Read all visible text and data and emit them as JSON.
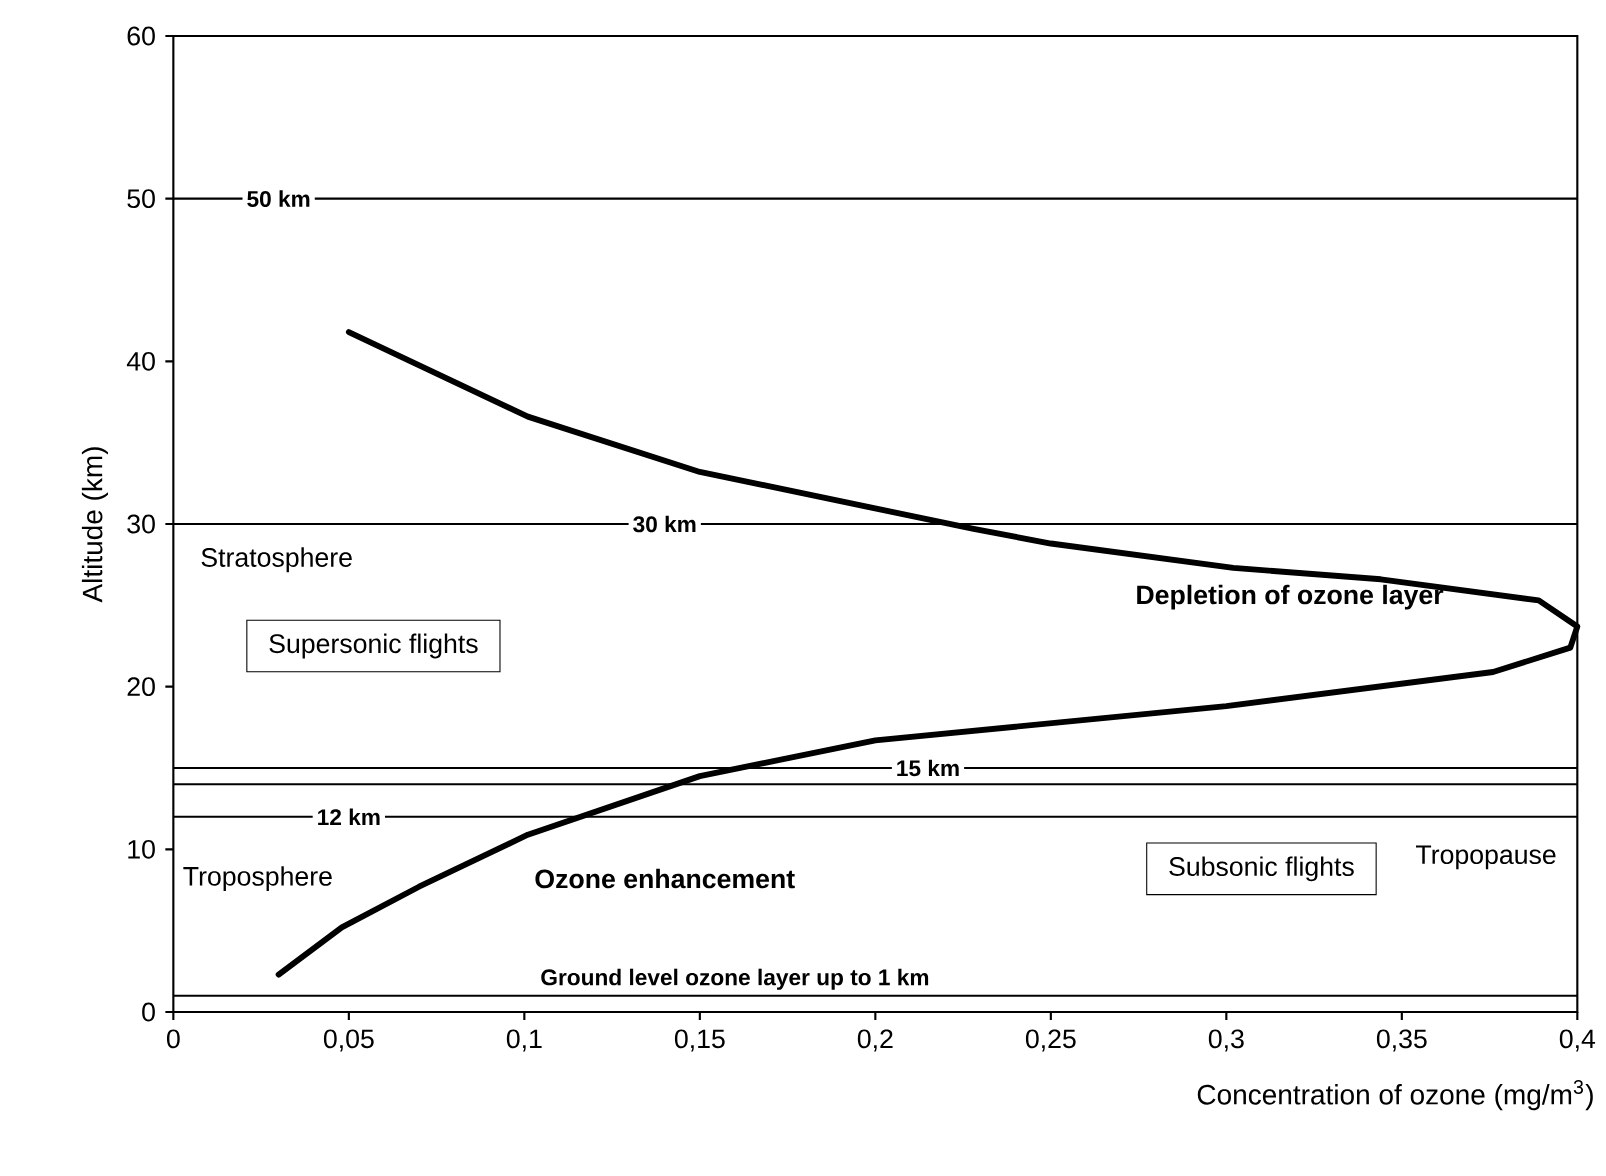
{
  "chart_data": {
    "type": "line",
    "xlabel": "Concentration of ozone (mg/m$^{3}$)",
    "ylabel": "Altitude (km)",
    "xlim": [
      0,
      0.4
    ],
    "ylim": [
      0,
      60
    ],
    "xticks": [
      {
        "value": 0,
        "label": "0"
      },
      {
        "value": 0.05,
        "label": "0,05"
      },
      {
        "value": 0.1,
        "label": "0,1"
      },
      {
        "value": 0.15,
        "label": "0,15"
      },
      {
        "value": 0.2,
        "label": "0,2"
      },
      {
        "value": 0.25,
        "label": "0,25"
      },
      {
        "value": 0.3,
        "label": "0,3"
      },
      {
        "value": 0.35,
        "label": "0,35"
      },
      {
        "value": 0.4,
        "label": "0,4"
      }
    ],
    "yticks": [
      0,
      10,
      20,
      30,
      40,
      50,
      60
    ],
    "series": [
      {
        "color": "#000000",
        "x": [
          0.05,
          0.101,
          0.15,
          0.228,
          0.25,
          0.302,
          0.344,
          0.389,
          0.4,
          0.398,
          0.376,
          0.3,
          0.2,
          0.15,
          0.101,
          0.07,
          0.048,
          0.03
        ],
        "values": [
          41.8,
          36.6,
          33.2,
          29.7,
          28.8,
          27.3,
          26.6,
          25.3,
          23.7,
          22.4,
          20.9,
          18.8,
          16.7,
          14.5,
          10.9,
          7.7,
          5.2,
          2.3
        ]
      }
    ],
    "ref_lines": [
      {
        "axis": "y",
        "value": 50,
        "label": "50 km"
      },
      {
        "axis": "y",
        "value": 30,
        "label": "30 km"
      },
      {
        "axis": "y",
        "value": 15,
        "label": "15 km"
      },
      {
        "axis": "y",
        "value": 14
      },
      {
        "axis": "y",
        "value": 12,
        "label": "12 km"
      },
      {
        "axis": "y",
        "value": 1,
        "label": "Ground level ozone layer up to 1 km"
      }
    ],
    "annotations": [
      "Stratosphere",
      "Supersonic flights",
      "Depletion of ozone layer",
      "Troposphere",
      "Ozone enhancement",
      "Subsonic flights",
      "Tropopause"
    ],
    "grid": false,
    "marker": "none",
    "line_style": "solid"
  }
}
